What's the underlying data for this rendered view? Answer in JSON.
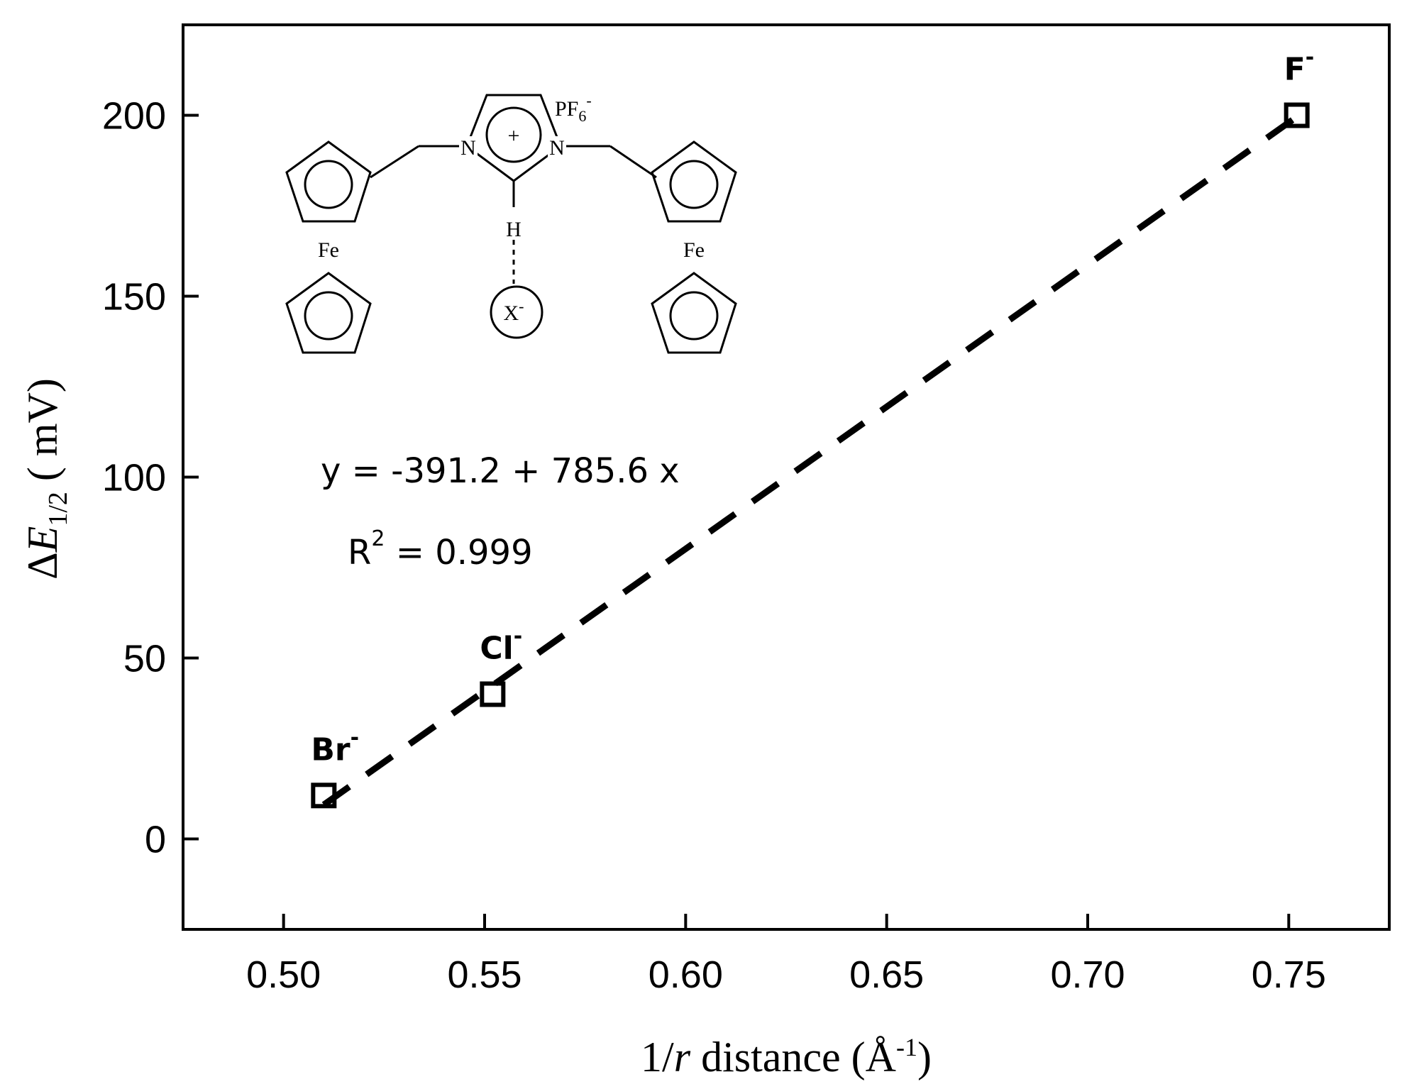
{
  "chart_data": {
    "type": "scatter",
    "xlabel": {
      "prefix": "1/",
      "italic": "r",
      "main": " distance (Å",
      "sup": "-1",
      "suffix": ")"
    },
    "ylabel": {
      "delta": "Δ",
      "italic": "E",
      "sub": "1/2",
      "rest": " ( mV)"
    },
    "xlim": [
      0.475,
      0.775
    ],
    "ylim": [
      -25,
      225
    ],
    "xticks": [
      0.5,
      0.55,
      0.6,
      0.65,
      0.7,
      0.75
    ],
    "xtick_labels": [
      "0.50",
      "0.55",
      "0.60",
      "0.65",
      "0.70",
      "0.75"
    ],
    "yticks": [
      0,
      50,
      100,
      150,
      200
    ],
    "ytick_labels": [
      "0",
      "50",
      "100",
      "150",
      "200"
    ],
    "grid": false,
    "points": [
      {
        "label": "Br",
        "x": 0.51,
        "y": 12
      },
      {
        "label": "Cl",
        "x": 0.552,
        "y": 40
      },
      {
        "label": "F",
        "x": 0.752,
        "y": 200
      }
    ],
    "ion_charge": "-",
    "fit": {
      "intercept": -391.2,
      "slope": 785.6,
      "x_range": [
        0.51,
        0.752
      ],
      "equation": "y = -391.2 + 785.6 x",
      "r2_label": "R",
      "r2_sup": "2",
      "r2_value": " = 0.999"
    },
    "structure": {
      "n_left": "N",
      "n_right": "N",
      "plus": "+",
      "anion_main": "PF",
      "anion_sub": "6",
      "anion_sup": "-",
      "h": "H",
      "x_main": "X",
      "x_sup": "-",
      "fe_left": "Fe",
      "fe_right": "Fe"
    }
  }
}
